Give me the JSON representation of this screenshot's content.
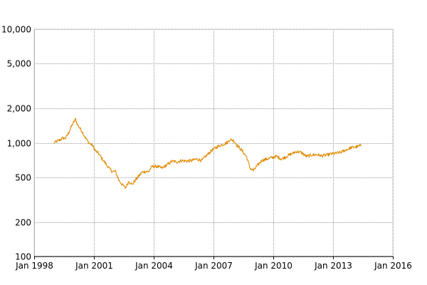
{
  "chart_data": {
    "type": "line",
    "title": "",
    "xlabel": "",
    "ylabel": "",
    "yscale": "log",
    "ylim": [
      100,
      10000
    ],
    "xlim": [
      "1998-01",
      "2016-01"
    ],
    "grid": true,
    "legend": "none",
    "x_ticks": [
      {
        "date": "1998-01",
        "label": "Jan 1998"
      },
      {
        "date": "2001-01",
        "label": "Jan 2001"
      },
      {
        "date": "2004-01",
        "label": "Jan 2004"
      },
      {
        "date": "2007-01",
        "label": "Jan 2007"
      },
      {
        "date": "2010-01",
        "label": "Jan 2010"
      },
      {
        "date": "2013-01",
        "label": "Jan 2013"
      },
      {
        "date": "2016-01",
        "label": "Jan 2016"
      }
    ],
    "y_ticks": [
      {
        "value": 100,
        "label": "100"
      },
      {
        "value": 200,
        "label": "200"
      },
      {
        "value": 500,
        "label": "500"
      },
      {
        "value": 1000,
        "label": "1,000"
      },
      {
        "value": 2000,
        "label": "2,000"
      },
      {
        "value": 5000,
        "label": "5,000"
      },
      {
        "value": 10000,
        "label": "10,000"
      }
    ],
    "series": [
      {
        "color": "#e08a00",
        "x": [
          "1999-01",
          "1999-02",
          "1999-04",
          "1999-06",
          "1999-08",
          "1999-10",
          "1999-12",
          "2000-02",
          "2000-03",
          "2000-04",
          "2000-06",
          "2000-08",
          "2000-10",
          "2000-12",
          "2001-02",
          "2001-04",
          "2001-06",
          "2001-08",
          "2001-10",
          "2001-12",
          "2002-02",
          "2002-04",
          "2002-06",
          "2002-08",
          "2002-10",
          "2002-12",
          "2003-02",
          "2003-04",
          "2003-06",
          "2003-08",
          "2003-10",
          "2003-12",
          "2004-03",
          "2004-06",
          "2004-09",
          "2004-12",
          "2005-03",
          "2005-06",
          "2005-09",
          "2005-12",
          "2006-03",
          "2006-06",
          "2006-09",
          "2006-12",
          "2007-03",
          "2007-06",
          "2007-09",
          "2007-11",
          "2008-01",
          "2008-03",
          "2008-06",
          "2008-09",
          "2008-11",
          "2009-01",
          "2009-03",
          "2009-06",
          "2009-09",
          "2009-12",
          "2010-03",
          "2010-06",
          "2010-09",
          "2010-12",
          "2011-03",
          "2011-06",
          "2011-09",
          "2011-12",
          "2012-03",
          "2012-06",
          "2012-09",
          "2012-12",
          "2013-03",
          "2013-06",
          "2013-09",
          "2013-12",
          "2014-03",
          "2014-06"
        ],
        "values": [
          1000,
          1020,
          1050,
          1100,
          1100,
          1250,
          1450,
          1620,
          1450,
          1380,
          1250,
          1100,
          1000,
          950,
          850,
          800,
          720,
          660,
          600,
          560,
          560,
          470,
          430,
          400,
          460,
          430,
          470,
          510,
          550,
          560,
          560,
          620,
          620,
          600,
          640,
          690,
          680,
          700,
          690,
          700,
          720,
          700,
          780,
          860,
          920,
          960,
          1000,
          1070,
          1050,
          960,
          860,
          750,
          600,
          570,
          620,
          700,
          720,
          740,
          760,
          720,
          760,
          800,
          840,
          820,
          760,
          780,
          790,
          770,
          780,
          800,
          810,
          830,
          870,
          910,
          920,
          950
        ]
      }
    ]
  }
}
